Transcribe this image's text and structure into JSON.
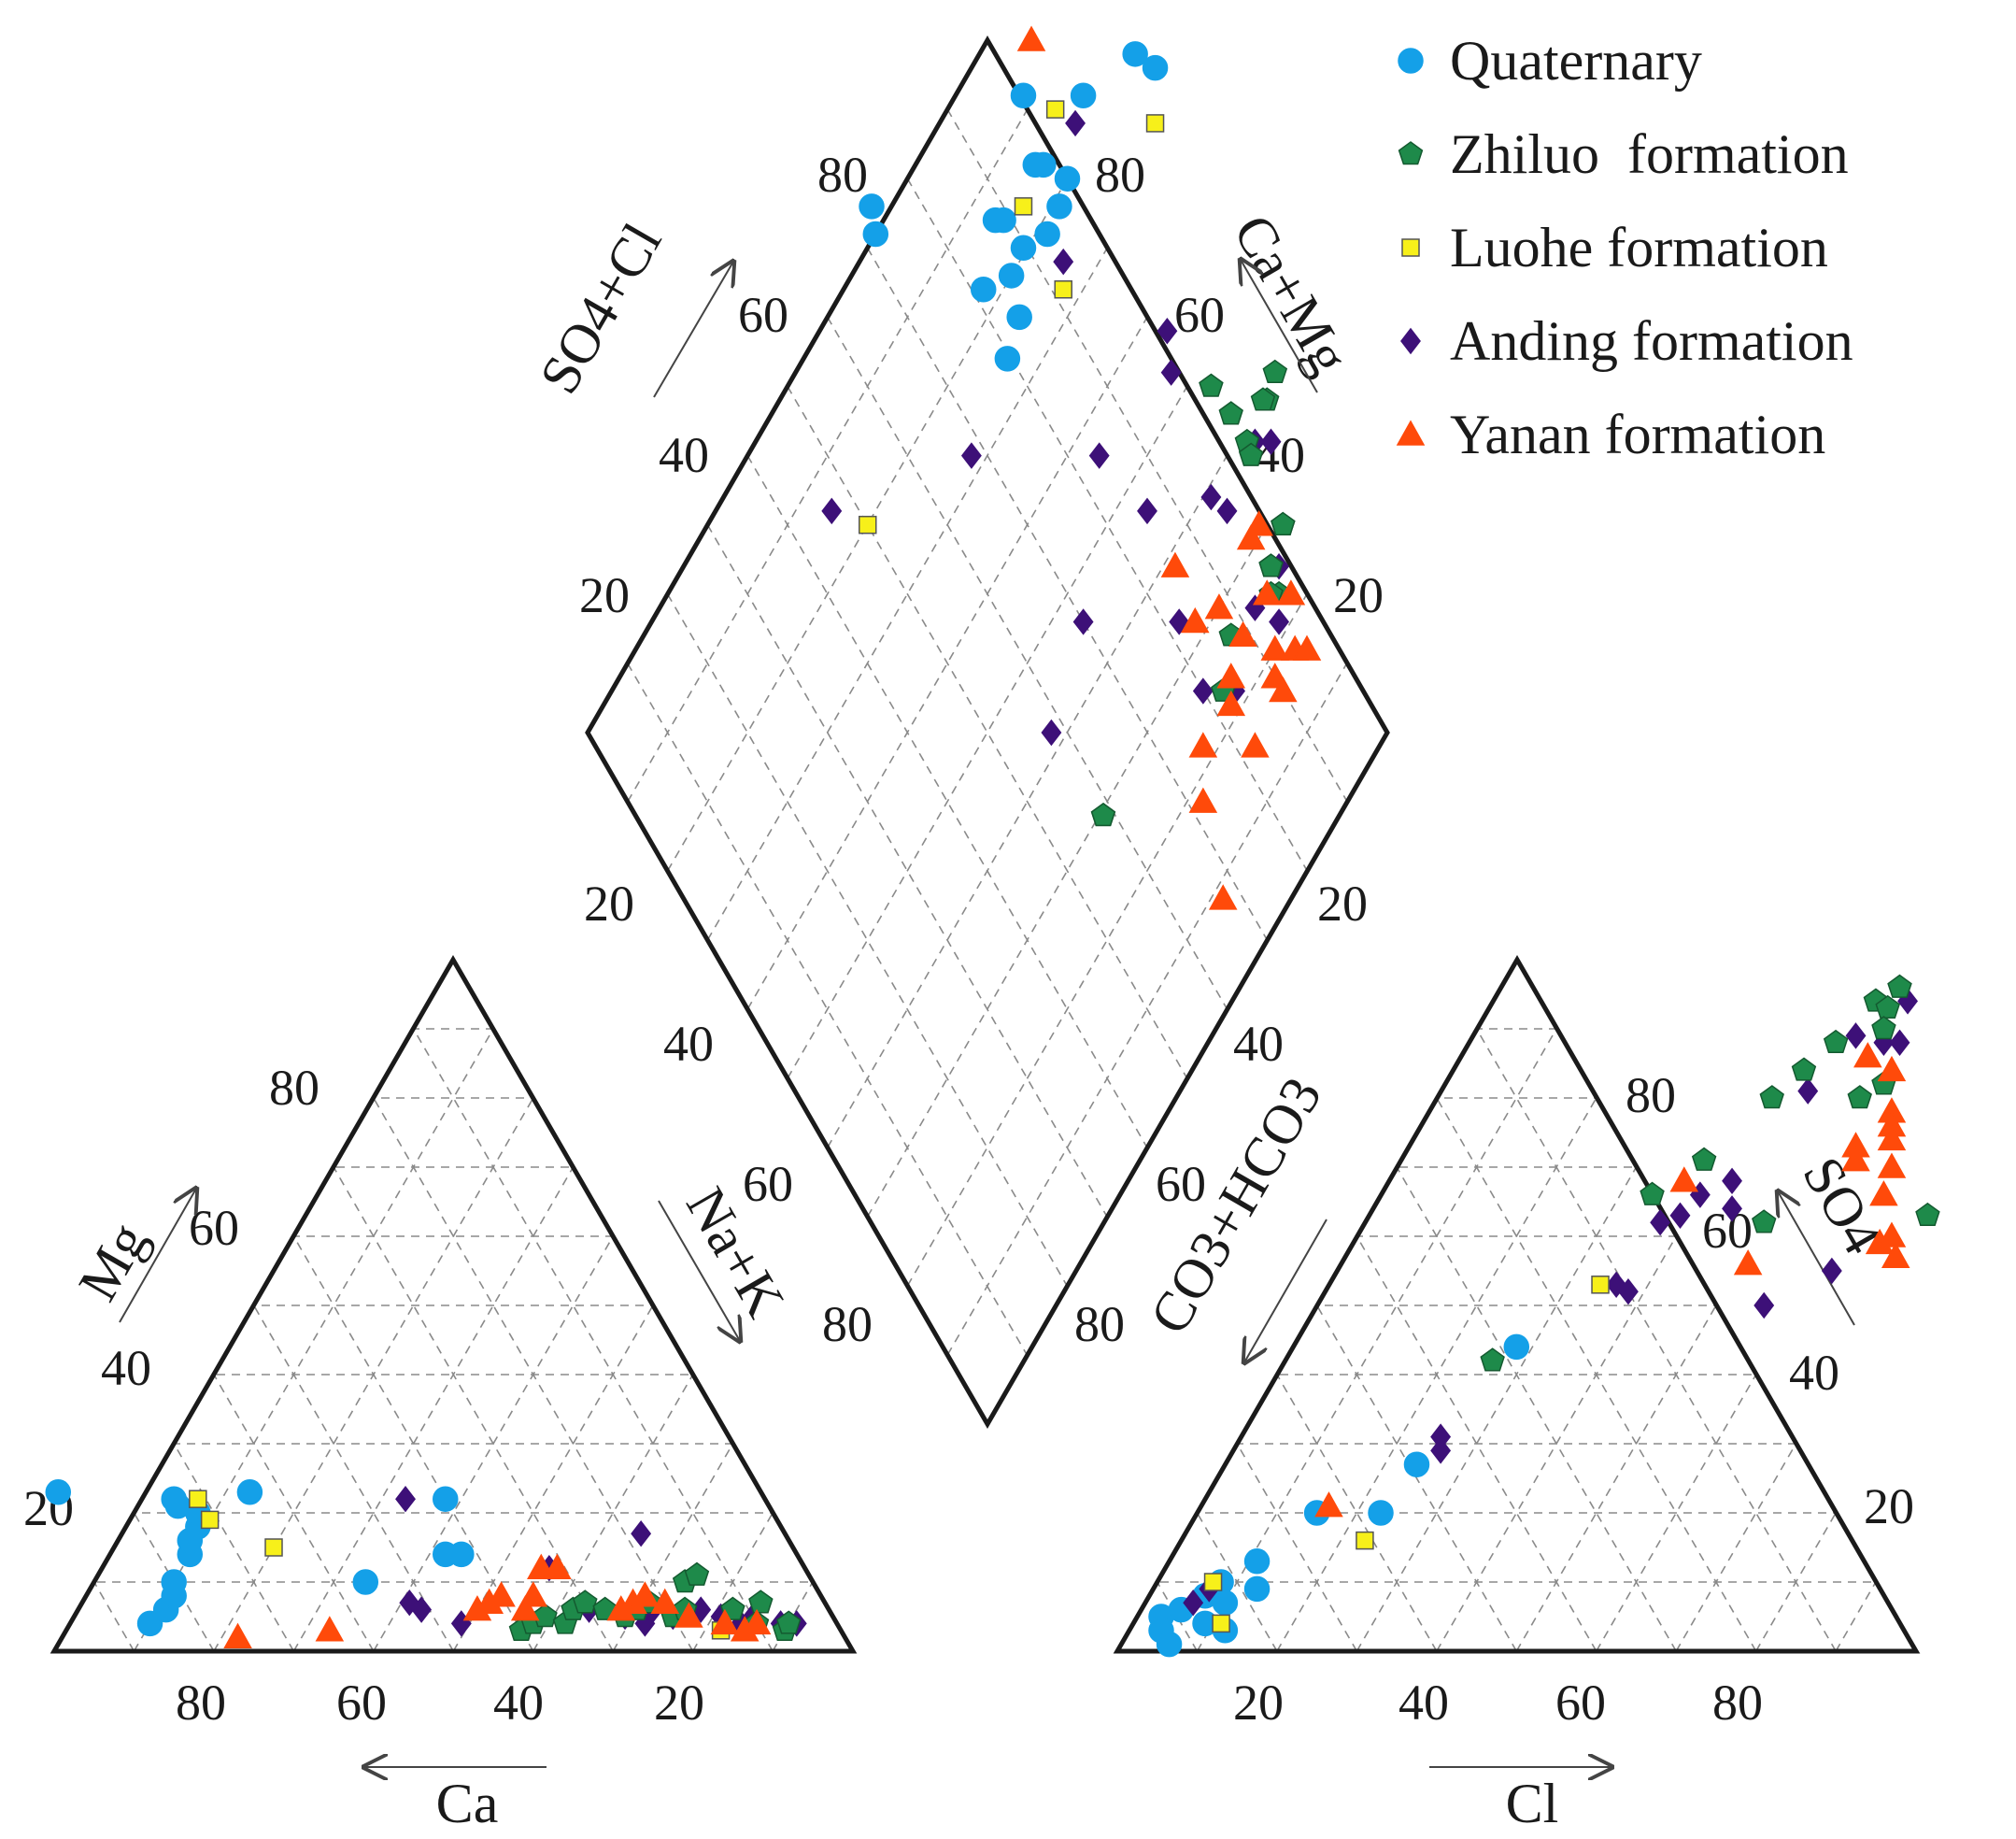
{
  "chart_data": {
    "type": "piper",
    "colors": {
      "Quaternary": "#14a0e8",
      "Zhiluo formation": "#1e8a4a",
      "Luohe formation": "#f7f01a",
      "Anding formation": "#3d1078",
      "Yanan formation": "#ff4a0a"
    },
    "legend": [
      {
        "name": "Quaternary",
        "marker": "circle"
      },
      {
        "name": "Zhiluo  formation",
        "marker": "pentagon"
      },
      {
        "name": "Luohe formation",
        "marker": "square"
      },
      {
        "name": "Anding formation",
        "marker": "diamond"
      },
      {
        "name": "Yanan formation",
        "marker": "triangle"
      }
    ],
    "cation_triangle": {
      "axes": {
        "left": "Mg",
        "right": "Na+K",
        "bottom": "Ca"
      },
      "ticks": [
        "20",
        "40",
        "60",
        "80"
      ],
      "bottom_ticks": [
        "80",
        "60",
        "40",
        "20"
      ],
      "series": {
        "Quaternary": [
          [
            0.86,
            0.04
          ],
          [
            0.83,
            0.06
          ],
          [
            0.81,
            0.08
          ],
          [
            0.8,
            0.1
          ],
          [
            0.76,
            0.14
          ],
          [
            0.75,
            0.16
          ],
          [
            0.73,
            0.18
          ],
          [
            0.72,
            0.2
          ],
          [
            0.74,
            0.21
          ],
          [
            0.74,
            0.22
          ],
          [
            0.88,
            0.23
          ],
          [
            0.64,
            0.23
          ],
          [
            0.56,
            0.1
          ],
          [
            0.44,
            0.14
          ],
          [
            0.42,
            0.14
          ],
          [
            0.4,
            0.22
          ]
        ],
        "Zhiluo formation": [
          [
            0.4,
            0.03
          ],
          [
            0.38,
            0.04
          ],
          [
            0.36,
            0.05
          ],
          [
            0.34,
            0.04
          ],
          [
            0.32,
            0.06
          ],
          [
            0.3,
            0.07
          ],
          [
            0.28,
            0.06
          ],
          [
            0.26,
            0.05
          ],
          [
            0.24,
            0.06
          ],
          [
            0.22,
            0.07
          ],
          [
            0.2,
            0.05
          ],
          [
            0.18,
            0.06
          ],
          [
            0.16,
            0.1
          ],
          [
            0.14,
            0.11
          ],
          [
            0.12,
            0.06
          ],
          [
            0.1,
            0.04
          ],
          [
            0.08,
            0.07
          ],
          [
            0.07,
            0.03
          ],
          [
            0.06,
            0.04
          ]
        ],
        "Luohe formation": [
          [
            0.71,
            0.22
          ],
          [
            0.71,
            0.19
          ],
          [
            0.65,
            0.15
          ],
          [
            0.15,
            0.03
          ]
        ],
        "Anding formation": [
          [
            0.52,
            0.07
          ],
          [
            0.51,
            0.06
          ],
          [
            0.47,
            0.04
          ],
          [
            0.45,
            0.22
          ],
          [
            0.32,
            0.12
          ],
          [
            0.3,
            0.06
          ],
          [
            0.26,
            0.05
          ],
          [
            0.24,
            0.04
          ],
          [
            0.22,
            0.06
          ],
          [
            0.2,
            0.05
          ],
          [
            0.18,
            0.17
          ],
          [
            0.16,
            0.06
          ],
          [
            0.14,
            0.05
          ],
          [
            0.12,
            0.04
          ],
          [
            0.1,
            0.05
          ],
          [
            0.07,
            0.04
          ],
          [
            0.05,
            0.04
          ]
        ],
        "Yanan formation": [
          [
            0.76,
            0.02
          ],
          [
            0.64,
            0.03
          ],
          [
            0.44,
            0.06
          ],
          [
            0.42,
            0.07
          ],
          [
            0.4,
            0.08
          ],
          [
            0.38,
            0.06
          ],
          [
            0.36,
            0.08
          ],
          [
            0.33,
            0.12
          ],
          [
            0.31,
            0.12
          ],
          [
            0.26,
            0.06
          ],
          [
            0.24,
            0.07
          ],
          [
            0.22,
            0.08
          ],
          [
            0.2,
            0.07
          ],
          [
            0.18,
            0.05
          ],
          [
            0.14,
            0.04
          ],
          [
            0.12,
            0.03
          ],
          [
            0.1,
            0.04
          ]
        ]
      }
    },
    "anion_triangle": {
      "axes": {
        "left": "CO3+HCO3",
        "right": "SO4",
        "bottom": "Cl"
      },
      "ticks": [
        "20",
        "40",
        "60",
        "80"
      ],
      "bottom_ticks": [
        "20",
        "40",
        "60",
        "80"
      ],
      "series": {
        "Quaternary": [
          [
            0.03,
            0.05
          ],
          [
            0.04,
            0.03
          ],
          [
            0.05,
            0.06
          ],
          [
            0.06,
            0.01
          ],
          [
            0.07,
            0.08
          ],
          [
            0.08,
            0.1
          ],
          [
            0.09,
            0.04
          ],
          [
            0.1,
            0.07
          ],
          [
            0.11,
            0.13
          ],
          [
            0.12,
            0.03
          ],
          [
            0.13,
            0.09
          ],
          [
            0.15,
            0.2
          ],
          [
            0.23,
            0.2
          ],
          [
            0.24,
            0.27
          ],
          [
            0.28,
            0.44
          ]
        ],
        "Zhiluo formation": [
          [
            0.26,
            0.42
          ],
          [
            0.34,
            0.66
          ],
          [
            0.38,
            0.71
          ],
          [
            0.42,
            0.8
          ],
          [
            0.44,
            0.84
          ],
          [
            0.46,
            0.88
          ],
          [
            0.48,
            0.94
          ],
          [
            0.5,
            0.96
          ],
          [
            0.5,
            0.93
          ],
          [
            0.51,
            0.9
          ],
          [
            0.53,
            0.8
          ],
          [
            0.55,
            0.82
          ],
          [
            0.5,
            0.62
          ],
          [
            0.7,
            0.63
          ]
        ],
        "Luohe formation": [
          [
            0.07,
            0.1
          ],
          [
            0.11,
            0.04
          ],
          [
            0.23,
            0.16
          ],
          [
            0.34,
            0.53
          ]
        ],
        "Anding formation": [
          [
            0.06,
            0.07
          ],
          [
            0.07,
            0.09
          ],
          [
            0.25,
            0.31
          ],
          [
            0.26,
            0.29
          ],
          [
            0.36,
            0.53
          ],
          [
            0.38,
            0.52
          ],
          [
            0.37,
            0.62
          ],
          [
            0.39,
            0.63
          ],
          [
            0.4,
            0.66
          ],
          [
            0.43,
            0.68
          ],
          [
            0.45,
            0.64
          ],
          [
            0.46,
            0.81
          ],
          [
            0.48,
            0.89
          ],
          [
            0.52,
            0.88
          ],
          [
            0.54,
            0.88
          ],
          [
            0.52,
            0.94
          ],
          [
            0.56,
            0.5
          ],
          [
            0.62,
            0.55
          ]
        ],
        "Yanan formation": [
          [
            0.16,
            0.21
          ],
          [
            0.37,
            0.68
          ],
          [
            0.51,
            0.56
          ],
          [
            0.51,
            0.86
          ],
          [
            0.55,
            0.84
          ],
          [
            0.56,
            0.73
          ],
          [
            0.57,
            0.71
          ],
          [
            0.58,
            0.78
          ],
          [
            0.59,
            0.76
          ],
          [
            0.6,
            0.74
          ],
          [
            0.62,
            0.7
          ],
          [
            0.63,
            0.66
          ],
          [
            0.66,
            0.59
          ],
          [
            0.67,
            0.6
          ],
          [
            0.69,
            0.57
          ]
        ]
      }
    },
    "diamond": {
      "axes": {
        "upper_left": "SO4+Cl",
        "upper_right": "Ca+Mg"
      },
      "ticks_upper": [
        "20",
        "40",
        "60",
        "80"
      ],
      "ticks_lower": [
        "20",
        "40",
        "60",
        "80"
      ],
      "series": {
        "Quaternary": [
          [
            0.2,
            0.1
          ],
          [
            0.18,
            0.12
          ],
          [
            0.15,
            0.14
          ],
          [
            0.14,
            0.09
          ],
          [
            0.12,
            0.09
          ],
          [
            0.09,
            0.04
          ],
          [
            0.09,
            0.15
          ],
          [
            0.08,
            0.2
          ],
          [
            0.05,
            0.23
          ],
          [
            0.06,
            0.17
          ],
          [
            0.04,
            0.13
          ],
          [
            0.02,
            0.13
          ],
          [
            -0.01,
            0.18
          ],
          [
            0.24,
            0.04
          ],
          [
            0.37,
            0.01
          ],
          [
            0.42,
            0.02
          ],
          [
            -0.28,
            0.14
          ],
          [
            -0.29,
            0.12
          ]
        ],
        "Zhiluo formation": [
          [
            0.56,
            0.25
          ],
          [
            0.61,
            0.27
          ],
          [
            0.65,
            0.29
          ],
          [
            0.7,
            0.26
          ],
          [
            0.72,
            0.24
          ],
          [
            0.69,
            0.26
          ],
          [
            0.66,
            0.3
          ],
          [
            0.74,
            0.35
          ],
          [
            0.74,
            0.35
          ],
          [
            0.73,
            0.4
          ],
          [
            0.71,
            0.38
          ],
          [
            0.71,
            0.38
          ],
          [
            0.71,
            0.4
          ],
          [
            0.61,
            0.43
          ],
          [
            0.59,
            0.47
          ],
          [
            0.29,
            0.56
          ],
          [
            0.29,
            0.56
          ]
        ],
        "Luohe formation": [
          [
            0.17,
            0.05
          ],
          [
            0.09,
            0.12
          ],
          [
            0.19,
            0.18
          ],
          [
            0.42,
            0.06
          ],
          [
            -0.3,
            0.35
          ]
        ],
        "Anding formation": [
          [
            0.22,
            0.06
          ],
          [
            0.19,
            0.16
          ],
          [
            0.28,
            0.3
          ],
          [
            0.24,
            0.42
          ],
          [
            0.16,
            0.5
          ],
          [
            0.4,
            0.34
          ],
          [
            0.46,
            0.24
          ],
          [
            0.48,
            0.42
          ],
          [
            0.54,
            0.47
          ],
          [
            0.62,
            0.47
          ],
          [
            0.67,
            0.41
          ],
          [
            0.71,
            0.29
          ],
          [
            0.67,
            0.29
          ],
          [
            0.6,
            0.34
          ],
          [
            0.56,
            0.33
          ],
          [
            0.45,
            0.21
          ],
          [
            0.73,
            0.42
          ],
          [
            0.73,
            0.38
          ],
          [
            -0.04,
            0.3
          ],
          [
            -0.39,
            0.34
          ]
        ],
        "Yanan formation": [
          [
            0.11,
            0.0
          ],
          [
            0.47,
            0.38
          ],
          [
            0.52,
            0.42
          ],
          [
            0.54,
            0.51
          ],
          [
            0.54,
            0.55
          ],
          [
            0.58,
            0.41
          ],
          [
            0.61,
            0.48
          ],
          [
            0.64,
            0.43
          ],
          [
            0.7,
            0.4
          ],
          [
            0.72,
            0.44
          ],
          [
            0.67,
            0.51
          ],
          [
            0.72,
            0.46
          ],
          [
            0.77,
            0.44
          ],
          [
            0.74,
            0.47
          ],
          [
            0.68,
            0.35
          ],
          [
            0.66,
            0.36
          ],
          [
            0.61,
            0.46
          ],
          [
            0.59,
            0.62
          ],
          [
            0.76,
            0.4
          ],
          [
            0.8,
            0.44
          ]
        ]
      }
    }
  }
}
